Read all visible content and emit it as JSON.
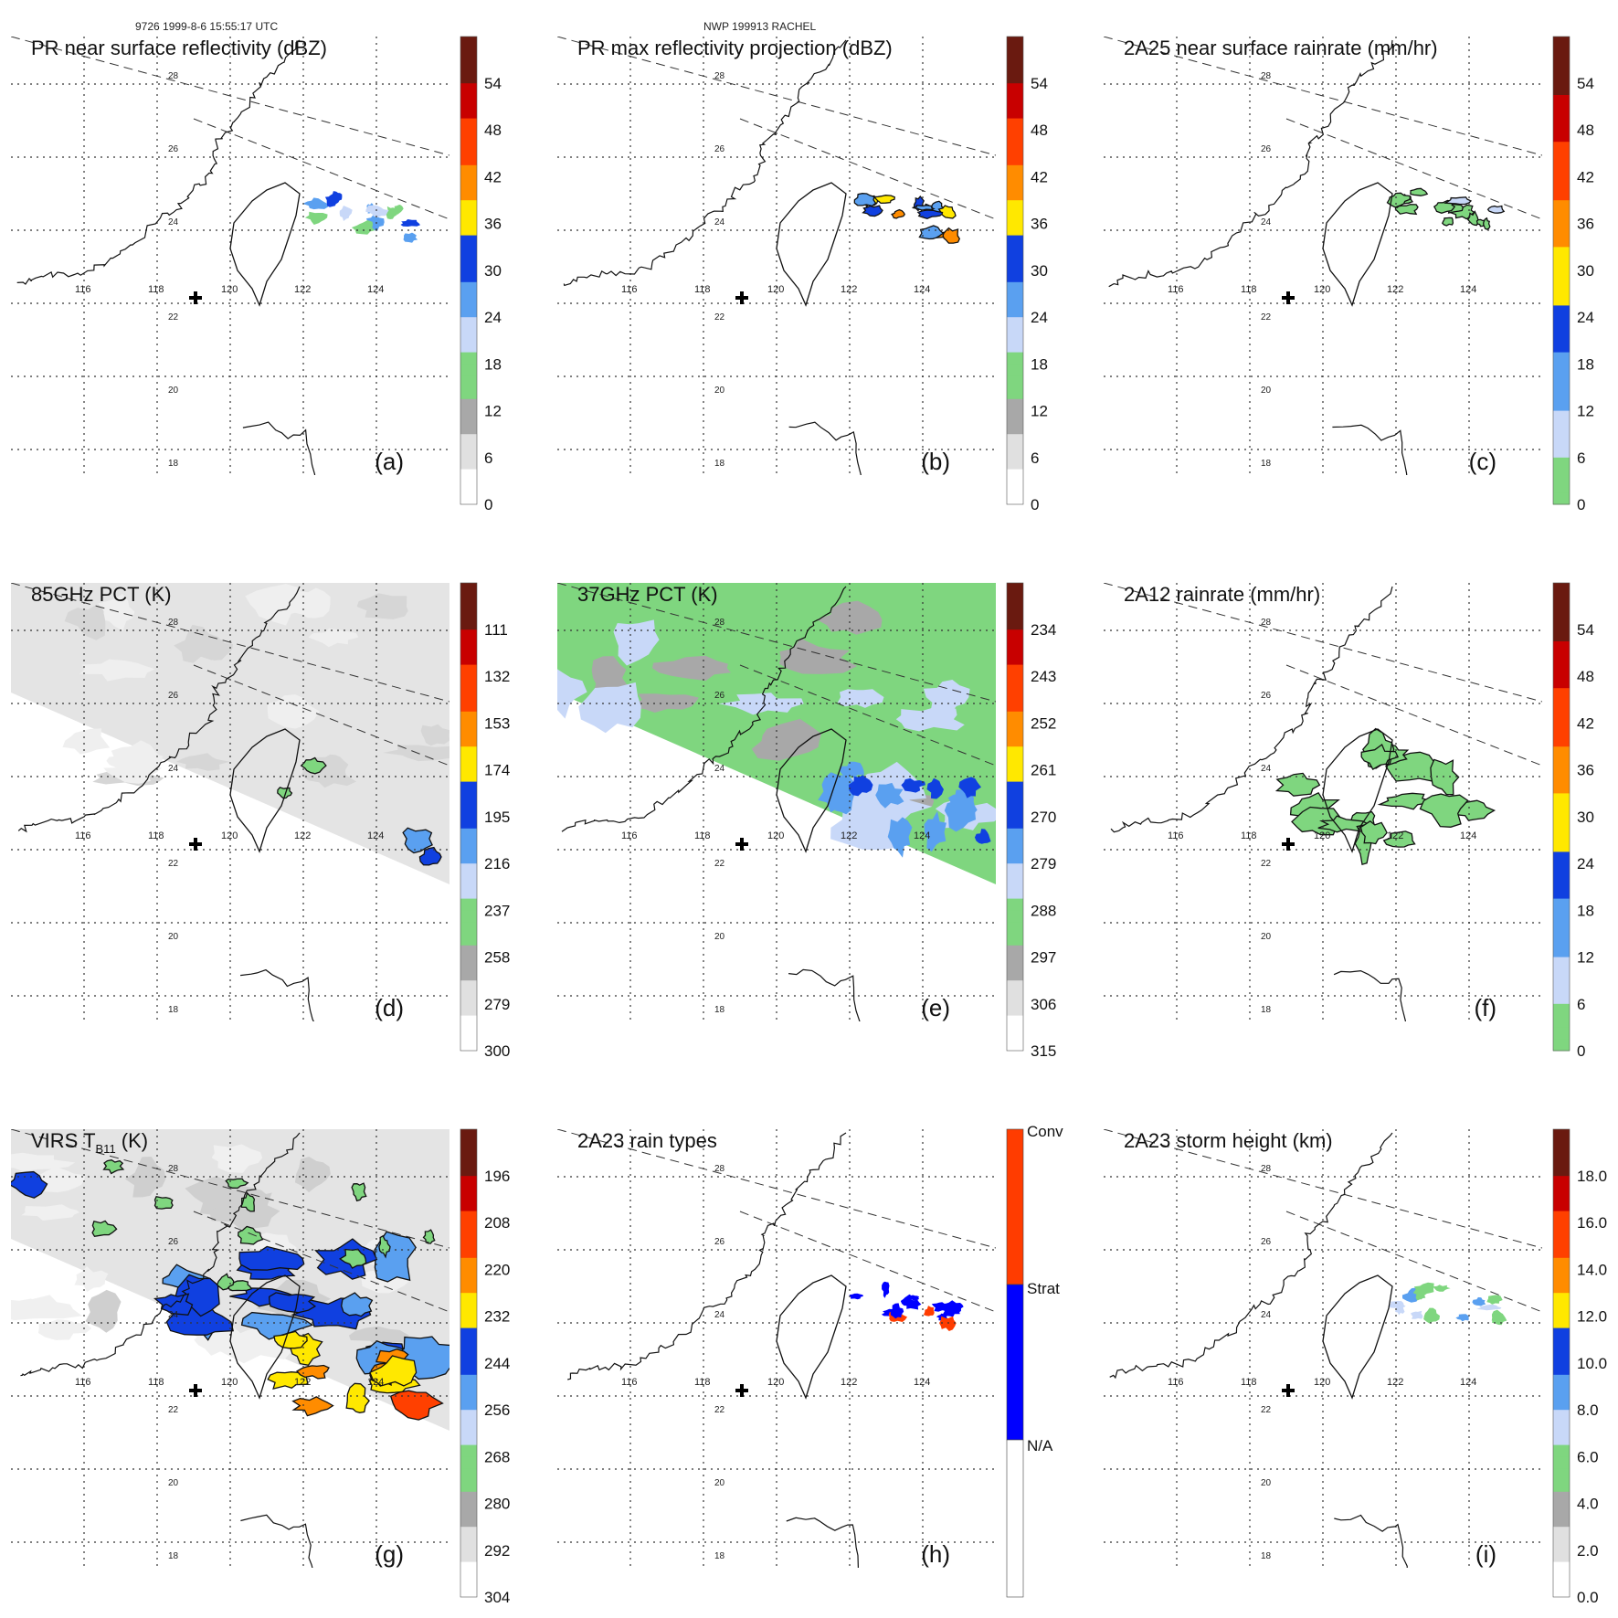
{
  "header": {
    "orbit_time": "9726 1999-8-6 15:55:17 UTC",
    "storm_name": "NWP 199913 RACHEL"
  },
  "map": {
    "lon_labels": [
      "116",
      "118",
      "120",
      "122",
      "124"
    ],
    "lat_labels": [
      "28",
      "26",
      "24",
      "22",
      "20",
      "18"
    ],
    "storm_center_marker": "cross-icon"
  },
  "panels": [
    {
      "id": "a",
      "title": "PR near surface reflectivity (dBZ)",
      "label": "(a)",
      "kind": "pr_ref",
      "colorbar": {
        "labels": [
          "54",
          "48",
          "42",
          "36",
          "30",
          "24",
          "18",
          "12",
          "6",
          "0"
        ]
      }
    },
    {
      "id": "b",
      "title": "PR max reflectivity projection (dBZ)",
      "label": "(b)",
      "kind": "pr_max",
      "colorbar": {
        "labels": [
          "54",
          "48",
          "42",
          "36",
          "30",
          "24",
          "18",
          "12",
          "6",
          "0"
        ]
      }
    },
    {
      "id": "c",
      "title": "2A25 near surface rainrate (mm/hr)",
      "label": "(c)",
      "kind": "pr_rain",
      "colorbar": {
        "labels": [
          "54",
          "48",
          "42",
          "36",
          "30",
          "24",
          "18",
          "12",
          "6",
          "0"
        ]
      }
    },
    {
      "id": "d",
      "title": "85GHz PCT (K)",
      "label": "(d)",
      "kind": "pct85",
      "colorbar": {
        "labels": [
          "111",
          "132",
          "153",
          "174",
          "195",
          "216",
          "237",
          "258",
          "279",
          "300"
        ]
      }
    },
    {
      "id": "e",
      "title": "37GHz PCT (K)",
      "label": "(e)",
      "kind": "pct37",
      "colorbar": {
        "labels": [
          "234",
          "243",
          "252",
          "261",
          "270",
          "279",
          "288",
          "297",
          "306",
          "315"
        ]
      }
    },
    {
      "id": "f",
      "title": "2A12 rainrate (mm/hr)",
      "label": "(f)",
      "kind": "tmi_rain",
      "colorbar": {
        "labels": [
          "54",
          "48",
          "42",
          "36",
          "30",
          "24",
          "18",
          "12",
          "6",
          "0"
        ]
      }
    },
    {
      "id": "g",
      "title": "VIRS T",
      "title_sub": "B11",
      "title_end": " (K)",
      "label": "(g)",
      "kind": "virs",
      "colorbar": {
        "labels": [
          "196",
          "208",
          "220",
          "232",
          "244",
          "256",
          "268",
          "280",
          "292",
          "304"
        ]
      }
    },
    {
      "id": "h",
      "title": "2A23 rain types",
      "label": "(h)",
      "kind": "raintype",
      "colorbar": {
        "labels": [
          "Conv",
          "Strat",
          "N/A"
        ]
      }
    },
    {
      "id": "i",
      "title": "2A23 storm height (km)",
      "label": "(i)",
      "kind": "height",
      "colorbar": {
        "labels": [
          "18.0",
          "16.0",
          "14.0",
          "12.0",
          "10.0",
          "8.0",
          "6.0",
          "4.0",
          "2.0",
          "0.0"
        ]
      }
    }
  ],
  "colors": {
    "scale12": [
      "#ffffff",
      "#e0e0e0",
      "#a8a8a8",
      "#7fd67f",
      "#c8d8f8",
      "#5aa0f0",
      "#1040e0",
      "#ffe800",
      "#ff8c00",
      "#ff4000",
      "#c80000",
      "#6a1a10"
    ],
    "scale_rain": [
      "#7fd67f",
      "#c8d8f8",
      "#5aa0f0",
      "#1040e0",
      "#ffe800",
      "#ff8c00",
      "#ff4000",
      "#c80000",
      "#6a1a10"
    ],
    "raintype": [
      "#ffffff",
      "#0000ff",
      "#ff3c00"
    ]
  }
}
